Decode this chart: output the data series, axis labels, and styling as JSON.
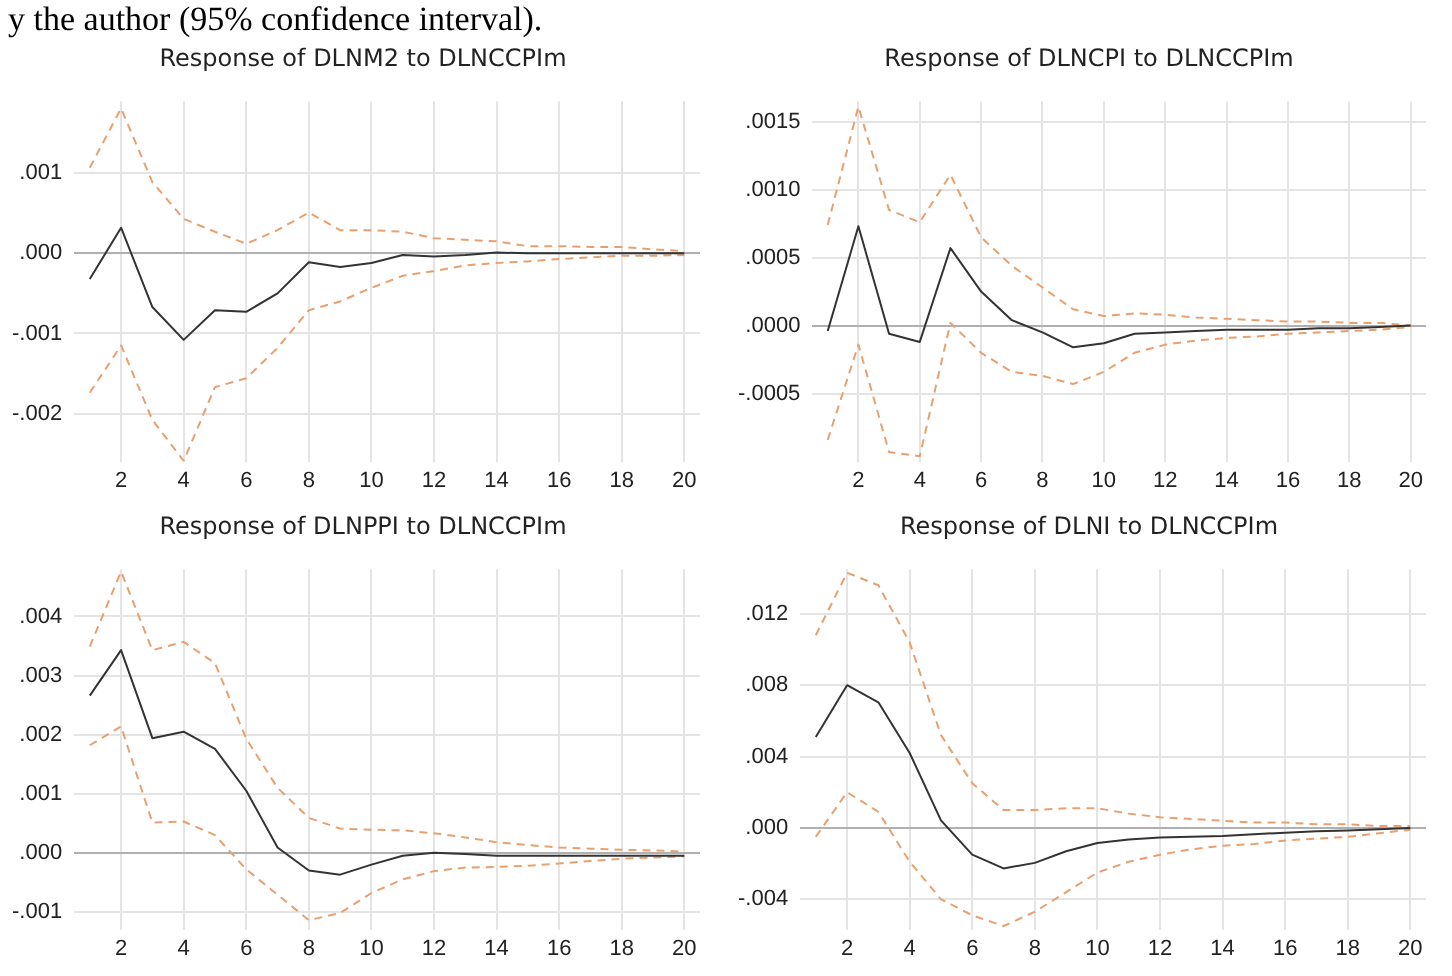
{
  "chart_data": [
    {
      "type": "line",
      "title": "Response of DLNM2 to DLNCCPIm",
      "annotations": [
        "y the author (95% confidence interval)."
      ],
      "x": [
        1,
        2,
        3,
        4,
        5,
        6,
        7,
        8,
        9,
        10,
        11,
        12,
        13,
        14,
        15,
        16,
        17,
        18,
        19,
        20
      ],
      "xlim": [
        0.5,
        20.5
      ],
      "xticks": [
        2,
        4,
        6,
        8,
        10,
        12,
        14,
        16,
        18,
        20
      ],
      "ylim": [
        -0.0026,
        0.0019
      ],
      "yticks": [
        {
          "value": 0.001,
          "label": ".001"
        },
        {
          "value": 0,
          "label": ".000"
        },
        {
          "value": -0.001,
          "label": "-.001"
        },
        {
          "value": -0.002,
          "label": "-.002"
        }
      ],
      "grid": true,
      "legend": false,
      "marker": "none",
      "series": [
        {
          "color": "#333333",
          "line_style": "solid",
          "values": [
            -0.00032,
            0.00032,
            -0.00067,
            -0.00108,
            -0.00071,
            -0.00073,
            -0.0005,
            -0.00011,
            -0.00017,
            -0.00012,
            -2e-05,
            -4e-05,
            -2e-05,
            1e-05,
            0,
            0,
            0,
            0,
            0,
            0
          ]
        },
        {
          "color": "#e8a070",
          "line_style": "dashed",
          "values": [
            0.00107,
            0.00181,
            0.00089,
            0.00043,
            0.00027,
            0.00012,
            0.00029,
            0.00051,
            0.00029,
            0.00029,
            0.00027,
            0.00019,
            0.00017,
            0.00015,
            9e-05,
            9e-05,
            8e-05,
            8e-05,
            5e-05,
            3e-05
          ]
        },
        {
          "color": "#e8a070",
          "line_style": "dashed",
          "values": [
            -0.00174,
            -0.00115,
            -0.00208,
            -0.00259,
            -0.00167,
            -0.00156,
            -0.00118,
            -0.00071,
            -0.0006,
            -0.00043,
            -0.00028,
            -0.00022,
            -0.00015,
            -0.00012,
            -0.0001,
            -7e-05,
            -5e-05,
            -3e-05,
            -3e-05,
            -2e-05
          ]
        }
      ]
    },
    {
      "type": "line",
      "title": "Response of DLNCPI to DLNCCPIm",
      "x": [
        1,
        2,
        3,
        4,
        5,
        6,
        7,
        8,
        9,
        10,
        11,
        12,
        13,
        14,
        15,
        16,
        17,
        18,
        19,
        20
      ],
      "xlim": [
        0.5,
        20.5
      ],
      "xticks": [
        2,
        4,
        6,
        8,
        10,
        12,
        14,
        16,
        18,
        20
      ],
      "ylim": [
        -0.001,
        0.00165
      ],
      "yticks": [
        {
          "value": 0.0015,
          "label": ".0015"
        },
        {
          "value": 0.001,
          "label": ".0010"
        },
        {
          "value": 0.0005,
          "label": ".0005"
        },
        {
          "value": 0,
          "label": ".0000"
        },
        {
          "value": -0.0005,
          "label": "-.0005"
        }
      ],
      "grid": true,
      "legend": false,
      "marker": "none",
      "series": [
        {
          "color": "#333333",
          "line_style": "solid",
          "values": [
            -4e-05,
            0.00073,
            -6e-05,
            -0.00012,
            0.00057,
            0.00025,
            4e-05,
            -5e-05,
            -0.00016,
            -0.00013,
            -6e-05,
            -5e-05,
            -4e-05,
            -3e-05,
            -3e-05,
            -3e-05,
            -2e-05,
            -2e-05,
            -1e-05,
            0
          ]
        },
        {
          "color": "#e8a070",
          "line_style": "dashed",
          "values": [
            0.00074,
            0.00161,
            0.00085,
            0.00076,
            0.00111,
            0.00065,
            0.00044,
            0.00028,
            0.00012,
            7e-05,
            9e-05,
            8e-05,
            6e-05,
            5e-05,
            4e-05,
            3e-05,
            3e-05,
            2e-05,
            2e-05,
            0
          ]
        },
        {
          "color": "#e8a070",
          "line_style": "dashed",
          "values": [
            -0.00084,
            -0.00014,
            -0.00093,
            -0.00096,
            2e-05,
            -0.0002,
            -0.00034,
            -0.00037,
            -0.00043,
            -0.00034,
            -0.0002,
            -0.00014,
            -0.00011,
            -9e-05,
            -8e-05,
            -6e-05,
            -5e-05,
            -4e-05,
            -3e-05,
            -1e-05
          ]
        }
      ]
    },
    {
      "type": "line",
      "title": "Response of DLNPPI to DLNCCPIm",
      "x": [
        1,
        2,
        3,
        4,
        5,
        6,
        7,
        8,
        9,
        10,
        11,
        12,
        13,
        14,
        15,
        16,
        17,
        18,
        19,
        20
      ],
      "xlim": [
        0.5,
        20.5
      ],
      "xticks": [
        2,
        4,
        6,
        8,
        10,
        12,
        14,
        16,
        18,
        20
      ],
      "ylim": [
        -0.0013,
        0.0048
      ],
      "yticks": [
        {
          "value": 0.004,
          "label": ".004"
        },
        {
          "value": 0.003,
          "label": ".003"
        },
        {
          "value": 0.002,
          "label": ".002"
        },
        {
          "value": 0.001,
          "label": ".001"
        },
        {
          "value": 0,
          "label": ".000"
        },
        {
          "value": -0.001,
          "label": "-.001"
        }
      ],
      "grid": true,
      "legend": false,
      "marker": "none",
      "series": [
        {
          "color": "#333333",
          "line_style": "solid",
          "values": [
            0.00266,
            0.00343,
            0.00194,
            0.00205,
            0.00176,
            0.00105,
            9e-05,
            -0.0003,
            -0.00037,
            -0.0002,
            -5e-05,
            0,
            -2e-05,
            -5e-05,
            -5e-05,
            -5e-05,
            -5e-05,
            -5e-05,
            -5e-05,
            -5e-05
          ]
        },
        {
          "color": "#e8a070",
          "line_style": "dashed",
          "values": [
            0.00349,
            0.00476,
            0.00343,
            0.00357,
            0.00321,
            0.00193,
            0.0011,
            0.00059,
            0.00041,
            0.00039,
            0.00038,
            0.00033,
            0.00026,
            0.00018,
            0.00013,
            9e-05,
            7e-05,
            5e-05,
            4e-05,
            2e-05
          ]
        },
        {
          "color": "#e8a070",
          "line_style": "dashed",
          "values": [
            0.00182,
            0.00214,
            0.00051,
            0.00053,
            0.0003,
            -0.00028,
            -0.00071,
            -0.00114,
            -0.00102,
            -0.00068,
            -0.00045,
            -0.00031,
            -0.00025,
            -0.00024,
            -0.00022,
            -0.00018,
            -0.00014,
            -0.0001,
            -8e-05,
            -6e-05
          ]
        }
      ]
    },
    {
      "type": "line",
      "title": "Response of DLNI to DLNCCPIm",
      "x": [
        1,
        2,
        3,
        4,
        5,
        6,
        7,
        8,
        9,
        10,
        11,
        12,
        13,
        14,
        15,
        16,
        17,
        18,
        19,
        20
      ],
      "xlim": [
        0.5,
        20.5
      ],
      "xticks": [
        2,
        4,
        6,
        8,
        10,
        12,
        14,
        16,
        18,
        20
      ],
      "ylim": [
        -0.0057,
        0.0145
      ],
      "yticks": [
        {
          "value": 0.012,
          "label": ".012"
        },
        {
          "value": 0.008,
          "label": ".008"
        },
        {
          "value": 0.004,
          "label": ".004"
        },
        {
          "value": 0,
          "label": ".000"
        },
        {
          "value": -0.004,
          "label": "-.004"
        }
      ],
      "grid": true,
      "legend": false,
      "marker": "none",
      "series": [
        {
          "color": "#333333",
          "line_style": "solid",
          "values": [
            0.0051,
            0.008,
            0.00704,
            0.0042,
            0.00042,
            -0.0015,
            -0.00227,
            -0.00196,
            -0.00131,
            -0.00085,
            -0.00065,
            -0.00054,
            -0.0005,
            -0.00046,
            -0.00035,
            -0.00027,
            -0.00019,
            -0.00015,
            -8e-05,
            0
          ]
        },
        {
          "color": "#e8a070",
          "line_style": "dashed",
          "values": [
            0.0108,
            0.0143,
            0.0136,
            0.0104,
            0.0052,
            0.0025,
            0.001,
            0.001,
            0.0011,
            0.0011,
            0.0008,
            0.0006,
            0.0005,
            0.0004,
            0.0003,
            0.0003,
            0.0002,
            0.0002,
            0.0001,
            0.0001
          ]
        },
        {
          "color": "#e8a070",
          "line_style": "dashed",
          "values": [
            -0.0005,
            0.002,
            0.0009,
            -0.0019,
            -0.004,
            -0.0049,
            -0.0055,
            -0.0047,
            -0.0036,
            -0.0025,
            -0.0019,
            -0.0015,
            -0.0012,
            -0.001,
            -0.0009,
            -0.0007,
            -0.0006,
            -0.0005,
            -0.0003,
            -0.0001
          ]
        }
      ]
    }
  ]
}
